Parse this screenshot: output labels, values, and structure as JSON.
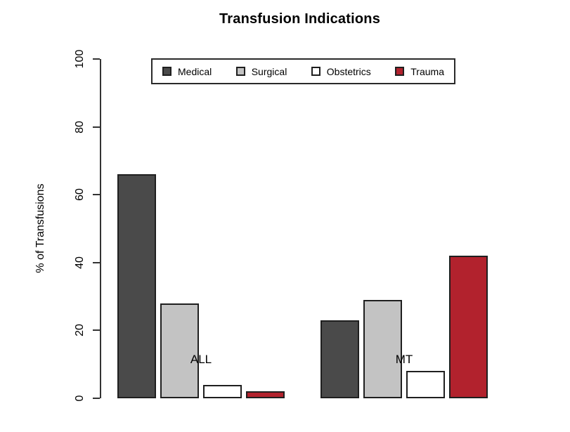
{
  "title": "Transfusion Indications",
  "chart_data": {
    "type": "bar",
    "title": "Transfusion Indications",
    "xlabel": "",
    "ylabel": "% of Transfusions",
    "categories": [
      "ALL",
      "MT"
    ],
    "series": [
      {
        "name": "Medical",
        "values": [
          66,
          23
        ],
        "color": "#4a4a4a"
      },
      {
        "name": "Surgical",
        "values": [
          28,
          29
        ],
        "color": "#c3c3c3"
      },
      {
        "name": "Obstetrics",
        "values": [
          4,
          8
        ],
        "color": "#ffffff"
      },
      {
        "name": "Trauma",
        "values": [
          2,
          42
        ],
        "color": "#b2222d"
      }
    ],
    "ylim": [
      0,
      100
    ],
    "yticks": [
      0,
      20,
      40,
      60,
      80,
      100
    ],
    "grid": false,
    "legend_position": "top-center",
    "bar_border_color": "#1f1f1f",
    "background_color": "#ffffff"
  }
}
